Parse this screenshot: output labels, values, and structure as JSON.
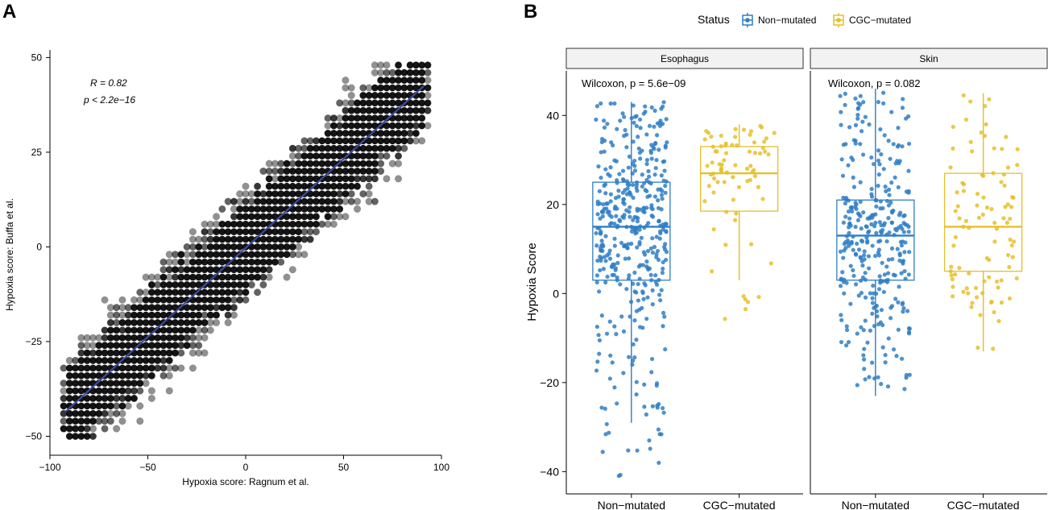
{
  "chart_data": [
    {
      "panel_label": "A",
      "type": "scatter",
      "xlabel": "Hypoxia score: Ragnum et al.",
      "ylabel": "Hypoxia score: Buffa et al.",
      "xlim": [
        -100,
        100
      ],
      "ylim": [
        -55,
        52
      ],
      "x_ticks": [
        -100,
        -50,
        0,
        50,
        100
      ],
      "y_ticks": [
        -50,
        -25,
        0,
        25,
        50
      ],
      "annotation": {
        "r_text": "R = 0.82",
        "p_text": "p < 2.2e−16"
      },
      "regression_line": {
        "x": [
          -92,
          91
        ],
        "y": [
          -43.5,
          42.5
        ],
        "color": "#3a4ba0"
      },
      "points_summary": {
        "n_approx": 9000,
        "grid_step_x": 3,
        "grid_step_y": 2,
        "slope": 0.47,
        "spread_sd": 9
      },
      "point_color": "#000000",
      "grid": false
    },
    {
      "panel_label": "B",
      "type": "box",
      "ylabel": "Hypoxia Score",
      "ylim": [
        -45,
        50
      ],
      "y_ticks": [
        -40,
        -20,
        0,
        20,
        40
      ],
      "legend": {
        "title": "Status",
        "placement": "top",
        "entries": [
          {
            "name": "Non−mutated",
            "color": "#2f7ec4"
          },
          {
            "name": "CGC−mutated",
            "color": "#e6bf2a"
          }
        ]
      },
      "facets": [
        {
          "name": "Esophagus",
          "stat": "Wilcoxon, p = 5.6e−09",
          "groups": [
            {
              "name": "Non−mutated",
              "color": "#2f7ec4",
              "whisker_low": -29,
              "q1": 3,
              "median": 15,
              "q3": 25,
              "whisker_high": 43,
              "n_points": 420,
              "min": -41,
              "max": 43
            },
            {
              "name": "CGC−mutated",
              "color": "#e6bf2a",
              "whisker_low": 3,
              "q1": 18.5,
              "median": 27,
              "q3": 33,
              "whisker_high": 38,
              "n_points": 75,
              "min": -6,
              "max": 38
            }
          ]
        },
        {
          "name": "Skin",
          "stat": "Wilcoxon, p = 0.082",
          "groups": [
            {
              "name": "Non−mutated",
              "color": "#2f7ec4",
              "whisker_low": -23,
              "q1": 3,
              "median": 13,
              "q3": 21,
              "whisker_high": 46,
              "n_points": 330,
              "min": -23,
              "max": 46
            },
            {
              "name": "CGC−mutated",
              "color": "#e6bf2a",
              "whisker_low": -13,
              "q1": 5,
              "median": 15,
              "q3": 27,
              "whisker_high": 45,
              "n_points": 95,
              "min": -13,
              "max": 45
            }
          ]
        }
      ],
      "grid": false
    }
  ]
}
